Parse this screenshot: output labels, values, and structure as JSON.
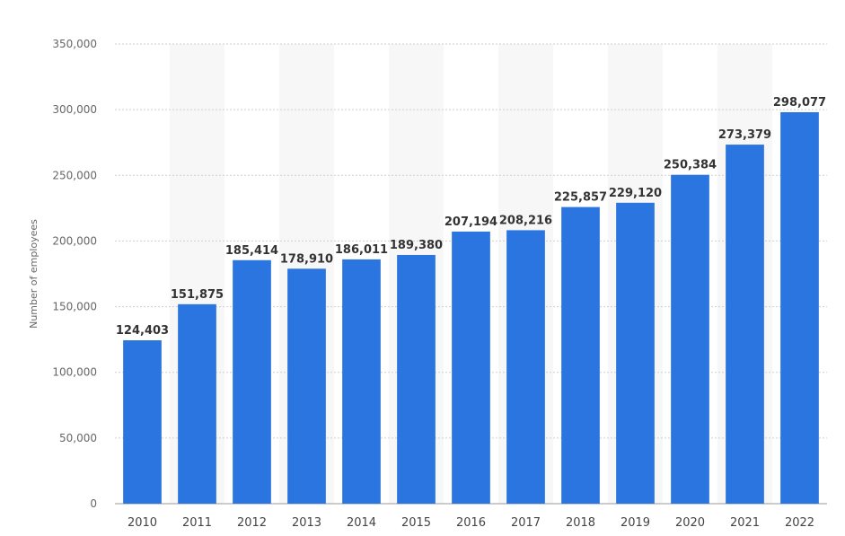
{
  "chart_data": {
    "type": "bar",
    "categories": [
      "2010",
      "2011",
      "2012",
      "2013",
      "2014",
      "2015",
      "2016",
      "2017",
      "2018",
      "2019",
      "2020",
      "2021",
      "2022"
    ],
    "values": [
      124403,
      151875,
      185414,
      178910,
      186011,
      189380,
      207194,
      208216,
      225857,
      229120,
      250384,
      273379,
      298077
    ],
    "value_labels": [
      "124,403",
      "151,875",
      "185,414",
      "178,910",
      "186,011",
      "189,380",
      "207,194",
      "208,216",
      "225,857",
      "229,120",
      "250,384",
      "273,379",
      "298,077"
    ],
    "title": "",
    "xlabel": "",
    "ylabel": "Number of employees",
    "ylim": [
      0,
      350000
    ],
    "yticks": [
      0,
      50000,
      100000,
      150000,
      200000,
      250000,
      300000,
      350000
    ],
    "ytick_labels": [
      "0",
      "50,000",
      "100,000",
      "150,000",
      "200,000",
      "250,000",
      "300,000",
      "350,000"
    ],
    "grid": true,
    "legend": "none",
    "colors": {
      "bar": "#2a75e0",
      "band": "#f7f7f7",
      "grid": "#cfcfcf"
    }
  }
}
